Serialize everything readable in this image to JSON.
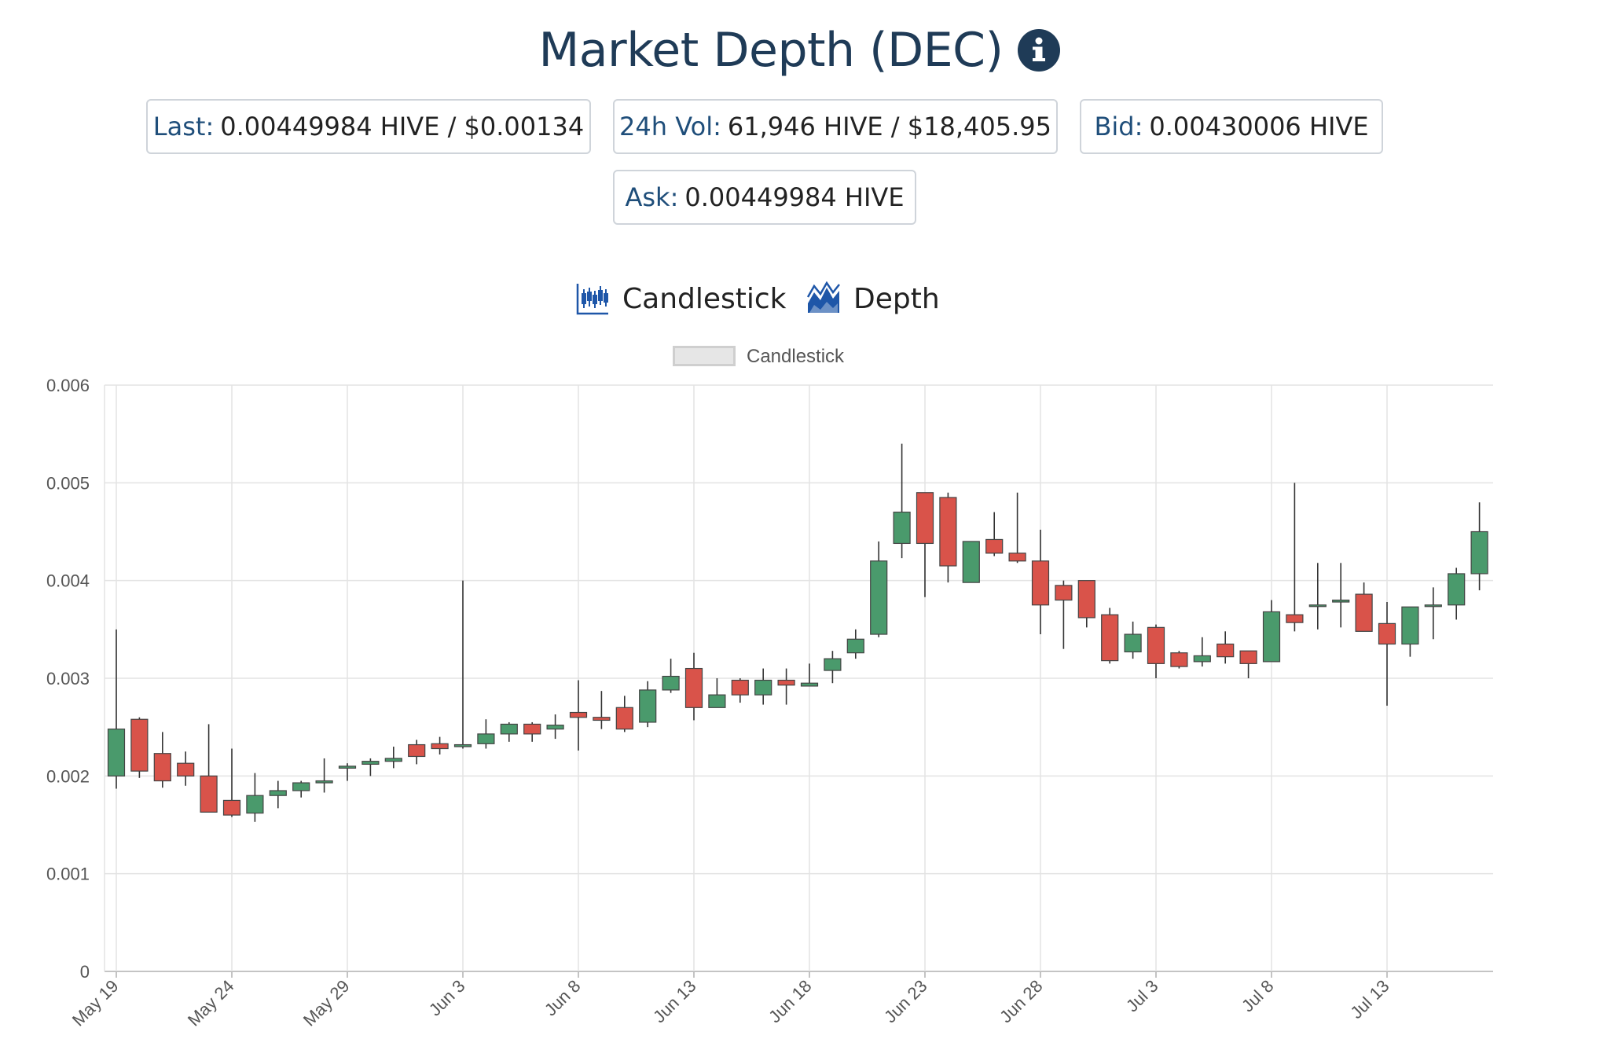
{
  "header": {
    "title": "Market Depth (DEC)",
    "info_icon": "info-circle-icon"
  },
  "stats": {
    "last_label": "Last:",
    "last_value": "0.00449984 HIVE / $0.00134",
    "vol_label": "24h Vol:",
    "vol_value": "61,946 HIVE / $18,405.95",
    "bid_label": "Bid:",
    "bid_value": "0.00430006 HIVE",
    "ask_label": "Ask:",
    "ask_value": "0.00449984 HIVE"
  },
  "tabs": {
    "candlestick_label": "Candlestick",
    "candlestick_icon": "candlestick-chart-icon",
    "depth_label": "Depth",
    "depth_icon": "area-chart-icon"
  },
  "colors": {
    "up": "#4a9a6c",
    "down": "#d9534a",
    "wick": "#333333",
    "title": "#1f3b57",
    "grid": "#e3e3e3"
  },
  "chart_data": {
    "type": "candlestick",
    "legend": "Candlestick",
    "legend_position": "top-center",
    "grid": true,
    "ylim": [
      0,
      0.006
    ],
    "y_ticks": [
      "0",
      "0.001",
      "0.002",
      "0.003",
      "0.004",
      "0.005",
      "0.006"
    ],
    "x_ticks": [
      "May 19",
      "May 24",
      "May 29",
      "Jun 3",
      "Jun 8",
      "Jun 13",
      "Jun 18",
      "Jun 23",
      "Jun 28",
      "Jul 3",
      "Jul 8",
      "Jul 13"
    ],
    "x": [
      "May 19",
      "May 20",
      "May 21",
      "May 22",
      "May 23",
      "May 24",
      "May 25",
      "May 26",
      "May 27",
      "May 28",
      "May 29",
      "May 30",
      "May 31",
      "Jun 1",
      "Jun 2",
      "Jun 3",
      "Jun 4",
      "Jun 5",
      "Jun 6",
      "Jun 7",
      "Jun 8",
      "Jun 9",
      "Jun 10",
      "Jun 11",
      "Jun 12",
      "Jun 13",
      "Jun 14",
      "Jun 15",
      "Jun 16",
      "Jun 17",
      "Jun 18",
      "Jun 19",
      "Jun 20",
      "Jun 21",
      "Jun 22",
      "Jun 23",
      "Jun 24",
      "Jun 25",
      "Jun 26",
      "Jun 27",
      "Jun 28",
      "Jun 29",
      "Jun 30",
      "Jul 1",
      "Jul 2",
      "Jul 3",
      "Jul 4",
      "Jul 5",
      "Jul 6",
      "Jul 7",
      "Jul 8",
      "Jul 9",
      "Jul 10",
      "Jul 11",
      "Jul 12",
      "Jul 13",
      "Jul 14",
      "Jul 15",
      "Jul 16",
      "Jul 17"
    ],
    "open": [
      0.002,
      0.00258,
      0.00223,
      0.00213,
      0.002,
      0.00175,
      0.00162,
      0.0018,
      0.00185,
      0.00193,
      0.00208,
      0.00212,
      0.00215,
      0.00232,
      0.00233,
      0.0023,
      0.00233,
      0.00243,
      0.00253,
      0.00248,
      0.00265,
      0.0026,
      0.0027,
      0.00255,
      0.00288,
      0.0031,
      0.0027,
      0.00298,
      0.00283,
      0.00298,
      0.00292,
      0.00308,
      0.00326,
      0.00345,
      0.00438,
      0.0049,
      0.00485,
      0.00398,
      0.00442,
      0.00428,
      0.0042,
      0.00395,
      0.004,
      0.00365,
      0.00327,
      0.00352,
      0.00326,
      0.00317,
      0.00335,
      0.00328,
      0.00317,
      0.00365,
      0.00374,
      0.00378,
      0.00386,
      0.00356,
      0.00335,
      0.00374,
      0.00375,
      0.00407
    ],
    "high": [
      0.0035,
      0.0026,
      0.00245,
      0.00225,
      0.00253,
      0.00228,
      0.00203,
      0.00195,
      0.00195,
      0.00218,
      0.00213,
      0.00218,
      0.0023,
      0.00237,
      0.0024,
      0.004,
      0.00258,
      0.00255,
      0.00255,
      0.00263,
      0.00298,
      0.00287,
      0.00282,
      0.00297,
      0.0032,
      0.00326,
      0.003,
      0.003,
      0.0031,
      0.0031,
      0.00315,
      0.00328,
      0.0035,
      0.0044,
      0.0054,
      0.0049,
      0.0049,
      0.0044,
      0.0047,
      0.0049,
      0.00452,
      0.004,
      0.004,
      0.00372,
      0.00358,
      0.00355,
      0.00328,
      0.00342,
      0.00348,
      0.00328,
      0.0038,
      0.005,
      0.00418,
      0.00418,
      0.00398,
      0.00378,
      0.00373,
      0.00393,
      0.00413,
      0.0048
    ],
    "low": [
      0.00187,
      0.00198,
      0.00188,
      0.0019,
      0.00165,
      0.00158,
      0.00153,
      0.00167,
      0.00178,
      0.00183,
      0.00195,
      0.002,
      0.00208,
      0.00212,
      0.00222,
      0.00228,
      0.00228,
      0.00235,
      0.00235,
      0.00238,
      0.00226,
      0.00248,
      0.00245,
      0.0025,
      0.00285,
      0.00257,
      0.0027,
      0.00275,
      0.00273,
      0.00273,
      0.00293,
      0.00295,
      0.0032,
      0.00342,
      0.00423,
      0.00383,
      0.00398,
      0.00398,
      0.00425,
      0.00418,
      0.00345,
      0.0033,
      0.00352,
      0.00315,
      0.0032,
      0.003,
      0.0031,
      0.00312,
      0.00315,
      0.003,
      0.00317,
      0.00348,
      0.0035,
      0.00352,
      0.00348,
      0.00272,
      0.00322,
      0.0034,
      0.0036,
      0.0039
    ],
    "close": [
      0.00248,
      0.00205,
      0.00195,
      0.002,
      0.00163,
      0.0016,
      0.0018,
      0.00185,
      0.00193,
      0.00195,
      0.0021,
      0.00215,
      0.00218,
      0.0022,
      0.00228,
      0.00232,
      0.00243,
      0.00253,
      0.00243,
      0.00252,
      0.0026,
      0.00257,
      0.00248,
      0.00288,
      0.00302,
      0.0027,
      0.00283,
      0.00283,
      0.00298,
      0.00293,
      0.00295,
      0.0032,
      0.0034,
      0.0042,
      0.0047,
      0.00438,
      0.00415,
      0.0044,
      0.00428,
      0.0042,
      0.00375,
      0.0038,
      0.00362,
      0.00318,
      0.00345,
      0.00315,
      0.00312,
      0.00323,
      0.00322,
      0.00315,
      0.00368,
      0.00357,
      0.00375,
      0.0038,
      0.00348,
      0.00335,
      0.00373,
      0.00375,
      0.00407,
      0.0045
    ]
  }
}
